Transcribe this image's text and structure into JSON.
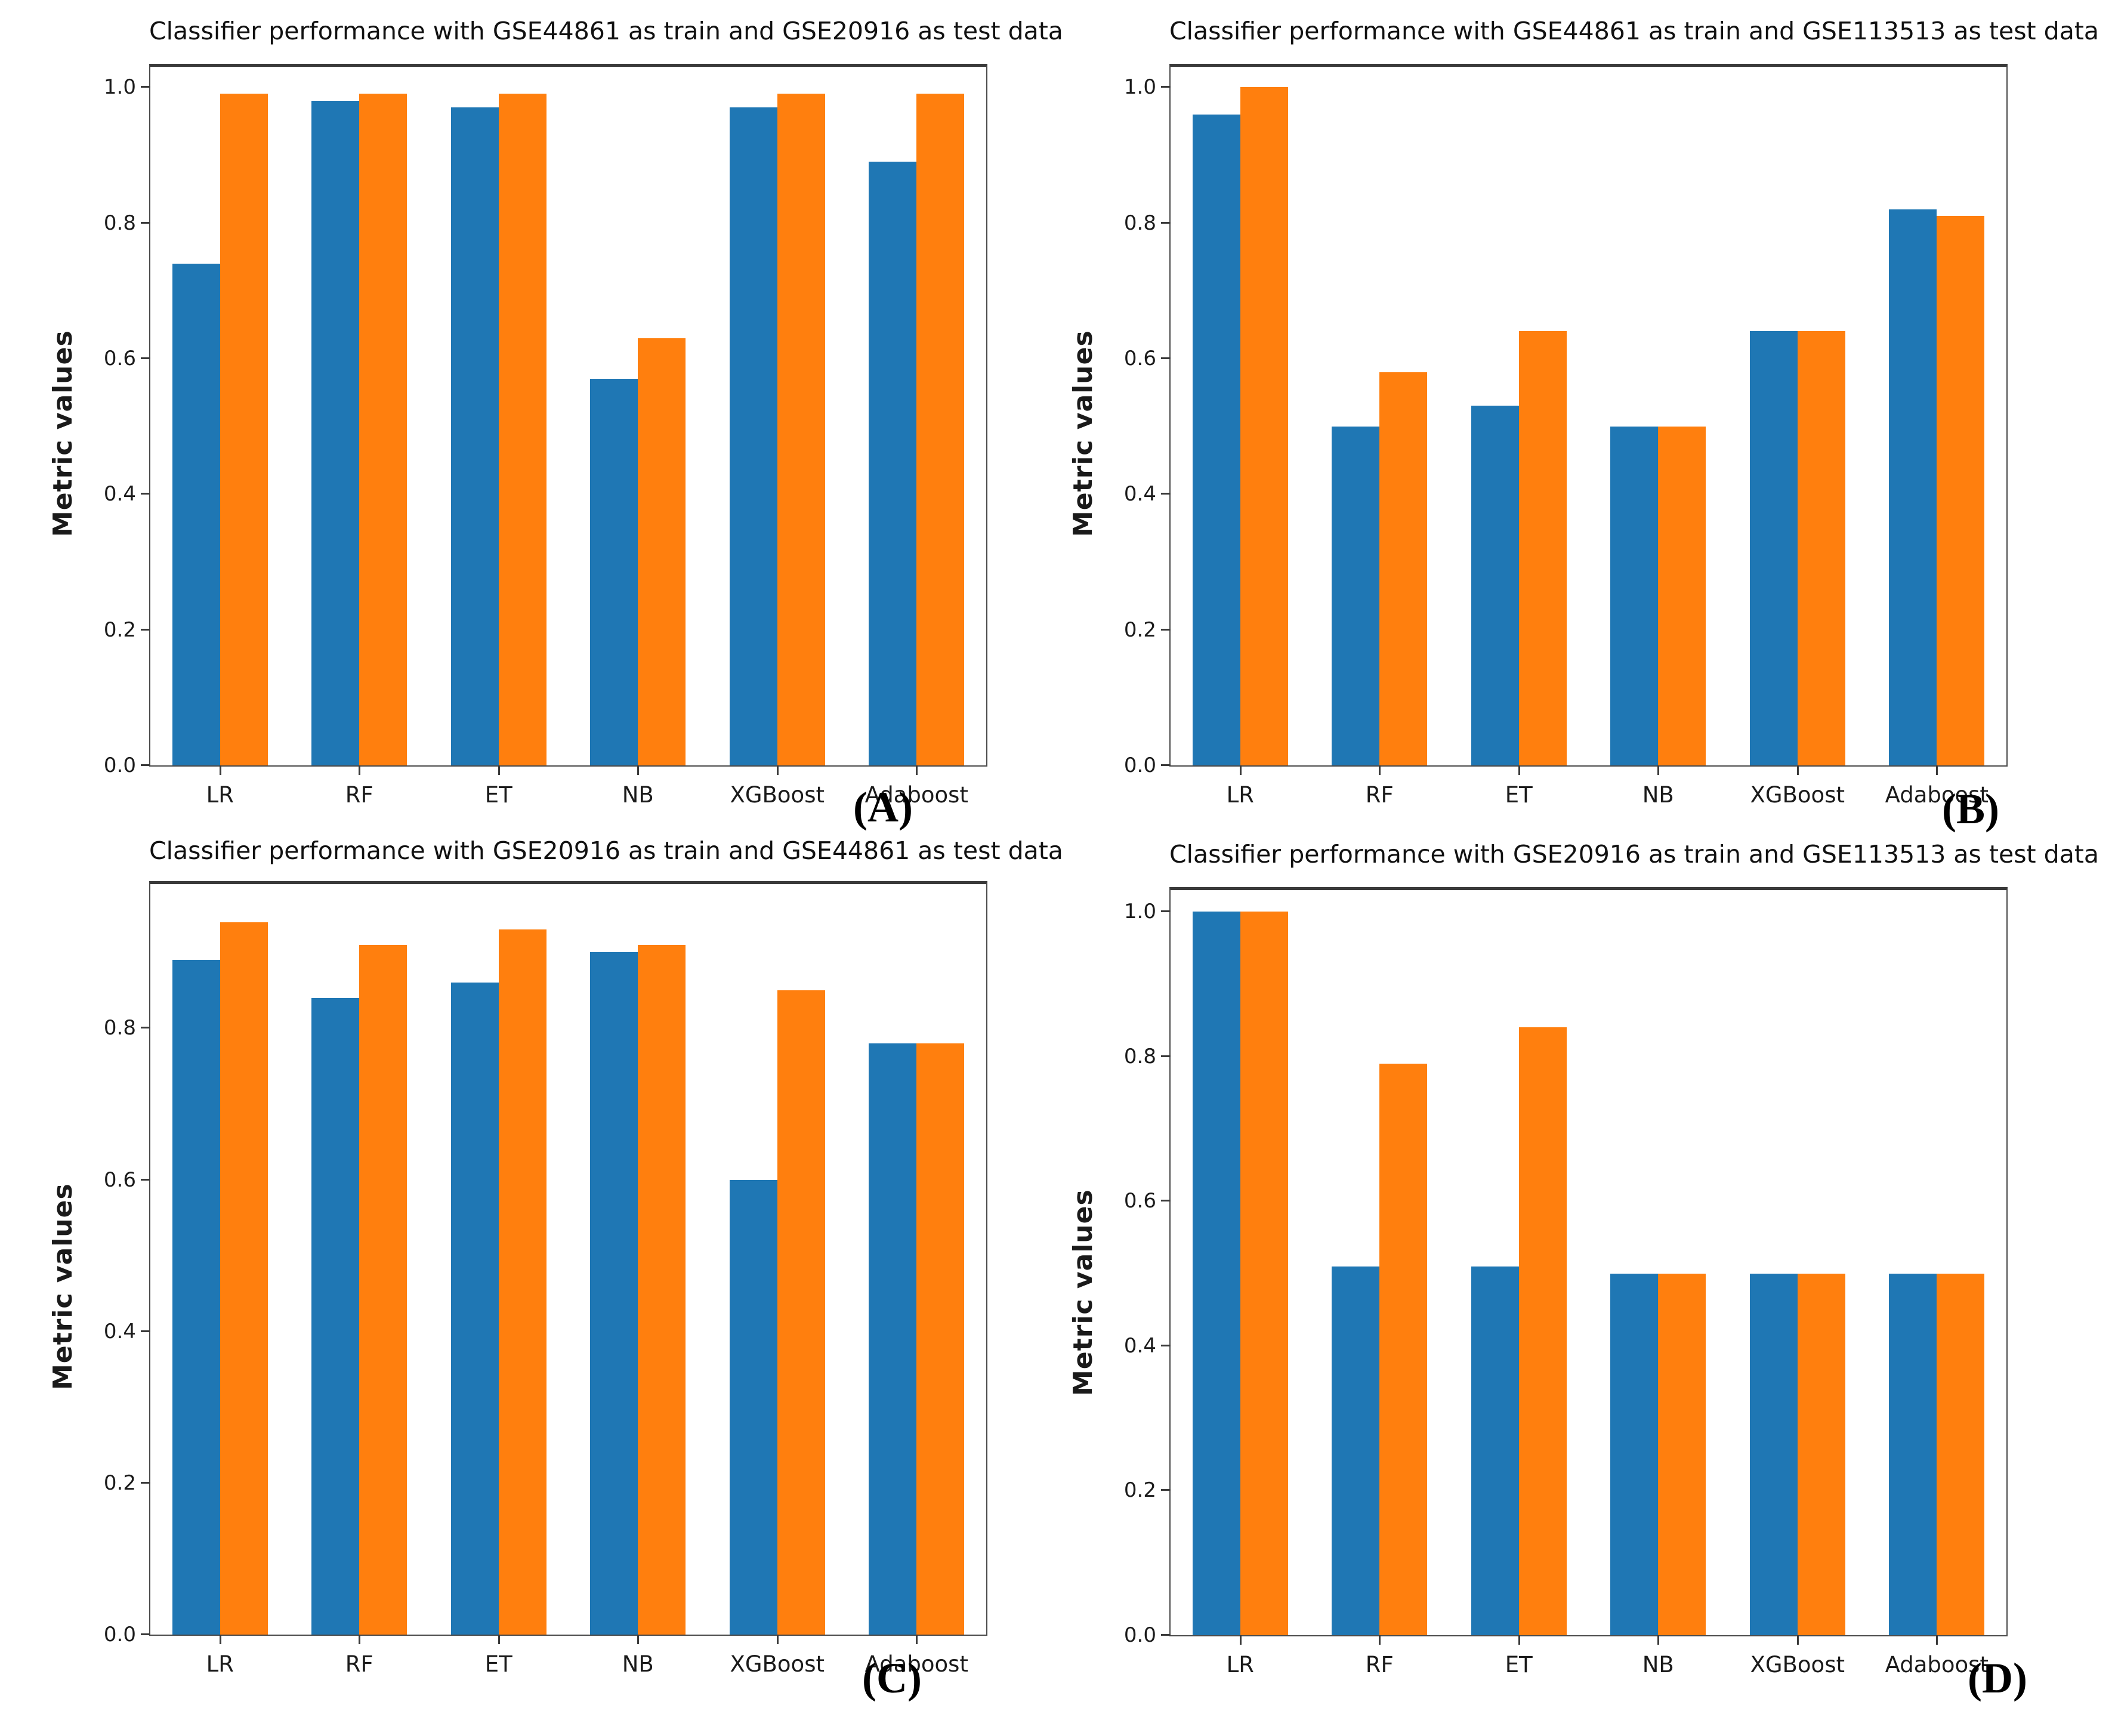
{
  "figure": {
    "background": "#ffffff",
    "bar_colors": {
      "blue": "#1f77b4",
      "orange": "#ff7f0e"
    },
    "spine_color": "#4a4a4a",
    "text_color": "#1a1a1a"
  },
  "chart_data": [
    {
      "type": "bar",
      "panel_label": "(A)",
      "title": "Classifier performance with GSE44861 as train and GSE20916 as test data",
      "ylabel": "Metric values",
      "xlabel": "",
      "categories": [
        "LR",
        "RF",
        "ET",
        "NB",
        "XGBoost",
        "Adaboost"
      ],
      "series": [
        {
          "name": "blue_series",
          "color": "#1f77b4",
          "values": [
            0.74,
            0.98,
            0.97,
            0.57,
            0.97,
            0.89
          ]
        },
        {
          "name": "orange_series",
          "color": "#ff7f0e",
          "values": [
            0.99,
            0.99,
            0.99,
            0.63,
            0.99,
            0.99
          ]
        }
      ],
      "yticks": [
        "0.0",
        "0.2",
        "0.4",
        "0.6",
        "0.8",
        "1.0"
      ],
      "ylim": [
        0,
        1.03
      ],
      "grid": false,
      "legend": "none"
    },
    {
      "type": "bar",
      "panel_label": "(B)",
      "title": "Classifier performance with GSE44861 as train and GSE113513 as test data",
      "ylabel": "Metric values",
      "xlabel": "",
      "categories": [
        "LR",
        "RF",
        "ET",
        "NB",
        "XGBoost",
        "Adaboost"
      ],
      "series": [
        {
          "name": "blue_series",
          "color": "#1f77b4",
          "values": [
            0.96,
            0.5,
            0.53,
            0.5,
            0.64,
            0.82
          ]
        },
        {
          "name": "orange_series",
          "color": "#ff7f0e",
          "values": [
            1.0,
            0.58,
            0.64,
            0.5,
            0.64,
            0.81
          ]
        }
      ],
      "yticks": [
        "0.0",
        "0.2",
        "0.4",
        "0.6",
        "0.8",
        "1.0"
      ],
      "ylim": [
        0,
        1.03
      ],
      "grid": false,
      "legend": "none"
    },
    {
      "type": "bar",
      "panel_label": "(C)",
      "title": "Classifier performance with GSE20916 as train and GSE44861 as test data",
      "ylabel": "Metric values",
      "xlabel": "",
      "categories": [
        "LR",
        "RF",
        "ET",
        "NB",
        "XGBoost",
        "Adaboost"
      ],
      "series": [
        {
          "name": "blue_series",
          "color": "#1f77b4",
          "values": [
            0.89,
            0.84,
            0.86,
            0.9,
            0.6,
            0.78
          ]
        },
        {
          "name": "orange_series",
          "color": "#ff7f0e",
          "values": [
            0.94,
            0.91,
            0.93,
            0.91,
            0.85,
            0.78
          ]
        }
      ],
      "yticks": [
        "0.0",
        "0.2",
        "0.4",
        "0.6",
        "0.8"
      ],
      "ylim": [
        0,
        0.99
      ],
      "grid": false,
      "legend": "none"
    },
    {
      "type": "bar",
      "panel_label": "(D)",
      "title": "Classifier performance with GSE20916 as train and GSE113513 as test data",
      "ylabel": "Metric values",
      "xlabel": "",
      "categories": [
        "LR",
        "RF",
        "ET",
        "NB",
        "XGBoost",
        "Adaboost"
      ],
      "series": [
        {
          "name": "blue_series",
          "color": "#1f77b4",
          "values": [
            1.0,
            0.51,
            0.51,
            0.5,
            0.5,
            0.5
          ]
        },
        {
          "name": "orange_series",
          "color": "#ff7f0e",
          "values": [
            1.0,
            0.79,
            0.84,
            0.5,
            0.5,
            0.5
          ]
        }
      ],
      "yticks": [
        "0.0",
        "0.2",
        "0.4",
        "0.6",
        "0.8",
        "1.0"
      ],
      "ylim": [
        0,
        1.03
      ],
      "grid": false,
      "legend": "none"
    }
  ]
}
